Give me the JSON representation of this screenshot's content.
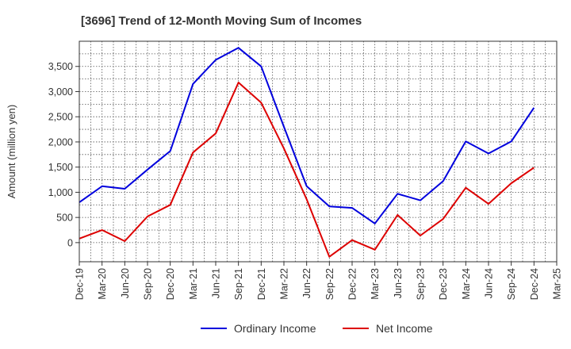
{
  "chart_data": {
    "type": "line",
    "title": "[3696]  Trend of 12-Month Moving Sum of Incomes",
    "xlabel": "",
    "ylabel": "Amount (million yen)",
    "categories": [
      "Dec-19",
      "Mar-20",
      "Jun-20",
      "Sep-20",
      "Dec-20",
      "Mar-21",
      "Jun-21",
      "Sep-21",
      "Dec-21",
      "Mar-22",
      "Jun-22",
      "Sep-22",
      "Dec-22",
      "Mar-23",
      "Jun-23",
      "Sep-23",
      "Dec-23",
      "Mar-24",
      "Jun-24",
      "Sep-24",
      "Dec-24",
      "Mar-25"
    ],
    "ylim": [
      -380,
      4000
    ],
    "yticks": [
      0,
      500,
      1000,
      1500,
      2000,
      2500,
      3000,
      3500
    ],
    "ytick_labels": [
      "0",
      "500",
      "1,000",
      "1,500",
      "2,000",
      "2,500",
      "3,000",
      "3,500"
    ],
    "grid": true,
    "legend_position": "bottom-center",
    "series": [
      {
        "name": "Ordinary Income",
        "color": "#0000dd",
        "values": [
          800,
          1120,
          1070,
          1450,
          1820,
          3150,
          3630,
          3870,
          3500,
          2300,
          1120,
          720,
          690,
          380,
          970,
          840,
          1220,
          2010,
          1770,
          2010,
          2680,
          null
        ]
      },
      {
        "name": "Net Income",
        "color": "#dd0000",
        "values": [
          80,
          250,
          30,
          520,
          750,
          1790,
          2170,
          3180,
          2780,
          1870,
          860,
          -280,
          50,
          -140,
          550,
          140,
          470,
          1090,
          770,
          1180,
          1490,
          null
        ]
      }
    ]
  }
}
